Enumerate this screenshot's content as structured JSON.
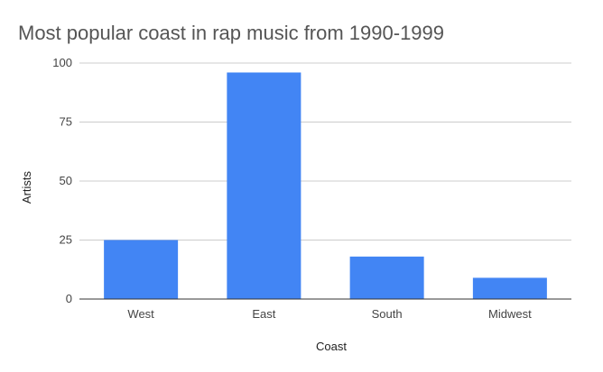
{
  "chart_data": {
    "type": "bar",
    "title": "Most popular coast in rap music from 1990-1999",
    "xlabel": "Coast",
    "ylabel": "Artists",
    "categories": [
      "West",
      "East",
      "South",
      "Midwest"
    ],
    "values": [
      25,
      96,
      18,
      9
    ],
    "ylim": [
      0,
      100
    ],
    "yticks": [
      0,
      25,
      50,
      75,
      100
    ],
    "grid": true,
    "bar_color": "#4285f4",
    "grid_color": "#cccccc",
    "axis_color": "#333333"
  }
}
